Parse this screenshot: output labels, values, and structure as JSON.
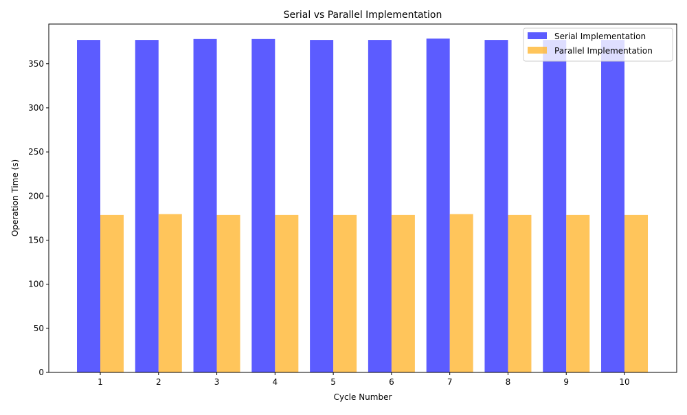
{
  "chart_data": {
    "type": "bar",
    "title": "Serial vs Parallel Implementation",
    "xlabel": "Cycle Number",
    "ylabel": "Operation Time (s)",
    "categories": [
      "1",
      "2",
      "3",
      "4",
      "5",
      "6",
      "7",
      "8",
      "9",
      "10"
    ],
    "series": [
      {
        "name": "Serial Implementation",
        "color": "#3333ff",
        "values": [
          377,
          377,
          378,
          378,
          377,
          377,
          378.5,
          377,
          377,
          377
        ]
      },
      {
        "name": "Parallel Implementation",
        "color": "#ffb732",
        "values": [
          178.5,
          179.5,
          178.5,
          178.5,
          178.5,
          178.5,
          179.5,
          178.5,
          178.5,
          178.5
        ]
      }
    ],
    "ylim": [
      0,
      395
    ],
    "yticks": [
      0,
      50,
      100,
      150,
      200,
      250,
      300,
      350
    ],
    "grid": false,
    "legend_position": "top-right"
  }
}
